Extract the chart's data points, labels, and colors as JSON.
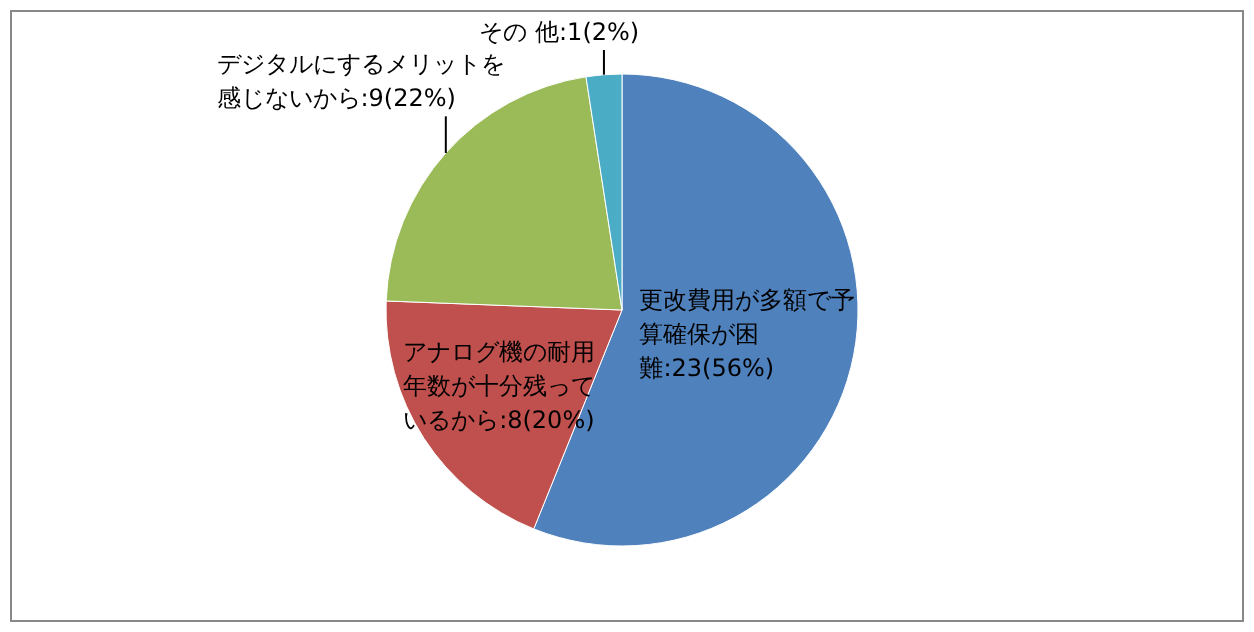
{
  "chart_data": {
    "type": "pie",
    "categories": [
      "更改費用が多額で予算確保が困難",
      "アナログ機の耐用年数が十分残っているから",
      "デジタルにするメリットを感じないから",
      "その 他"
    ],
    "values": [
      23,
      8,
      9,
      1
    ],
    "value_labels": [
      ":23(56%)",
      ":8(20%)",
      ":9(22%)",
      ":1(2%)"
    ],
    "colors": [
      "#4f81bd",
      "#c0504d",
      "#9bbb59",
      "#4bacc6"
    ]
  }
}
